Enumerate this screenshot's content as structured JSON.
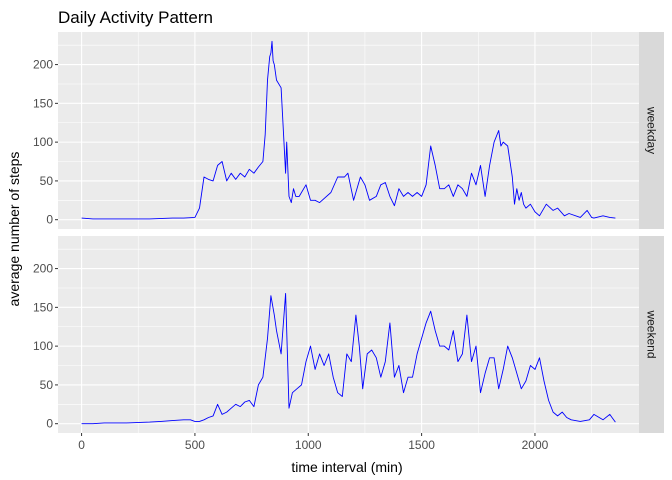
{
  "chart_data": {
    "type": "line",
    "title": "Daily Activity Pattern",
    "xlabel": "time interval (min)",
    "ylabel": "average number of steps",
    "xlim": [
      -104,
      2459
    ],
    "ylim": [
      -12,
      242
    ],
    "xticks": [
      0,
      500,
      1000,
      1500,
      2000
    ],
    "xminor": [
      250,
      750,
      1250,
      1750,
      2250
    ],
    "yticks": [
      0,
      50,
      100,
      150,
      200
    ],
    "yminor": [
      25,
      75,
      125,
      175,
      225
    ],
    "grid": true,
    "legend": "none",
    "line_color": "#0000ff",
    "panel_bg": "#ebebeb",
    "strip_bg": "#d9d9d9",
    "facet_labels": [
      "weekday",
      "weekend"
    ],
    "series": [
      {
        "name": "weekday",
        "x": [
          0,
          50,
          100,
          200,
          300,
          400,
          450,
          500,
          520,
          540,
          560,
          580,
          600,
          620,
          640,
          660,
          680,
          700,
          720,
          740,
          760,
          780,
          800,
          810,
          820,
          830,
          835,
          840,
          845,
          850,
          860,
          880,
          900,
          905,
          915,
          925,
          935,
          945,
          960,
          990,
          1010,
          1030,
          1050,
          1100,
          1130,
          1145,
          1160,
          1175,
          1200,
          1230,
          1250,
          1270,
          1300,
          1320,
          1340,
          1360,
          1380,
          1400,
          1420,
          1440,
          1460,
          1480,
          1500,
          1520,
          1540,
          1560,
          1580,
          1600,
          1620,
          1640,
          1660,
          1680,
          1700,
          1720,
          1740,
          1760,
          1780,
          1800,
          1820,
          1840,
          1850,
          1860,
          1880,
          1900,
          1910,
          1920,
          1930,
          1940,
          1950,
          1960,
          1980,
          2000,
          2020,
          2050,
          2080,
          2100,
          2130,
          2150,
          2200,
          2230,
          2250,
          2260,
          2300,
          2330,
          2355
        ],
        "y": [
          2,
          1,
          1,
          1,
          1,
          2,
          2,
          3,
          15,
          55,
          52,
          50,
          70,
          75,
          50,
          60,
          52,
          60,
          55,
          65,
          60,
          68,
          75,
          110,
          180,
          210,
          215,
          230,
          205,
          200,
          180,
          170,
          60,
          100,
          30,
          22,
          40,
          30,
          30,
          45,
          25,
          25,
          22,
          35,
          55,
          55,
          55,
          60,
          25,
          55,
          45,
          25,
          30,
          45,
          48,
          30,
          18,
          40,
          30,
          35,
          30,
          35,
          30,
          45,
          95,
          70,
          40,
          40,
          45,
          30,
          45,
          40,
          30,
          60,
          45,
          70,
          30,
          70,
          100,
          115,
          95,
          100,
          95,
          55,
          20,
          40,
          25,
          35,
          20,
          15,
          20,
          10,
          5,
          20,
          12,
          15,
          5,
          8,
          3,
          12,
          3,
          2,
          5,
          3,
          2
        ]
      },
      {
        "name": "weekend",
        "x": [
          0,
          50,
          100,
          200,
          300,
          350,
          400,
          450,
          480,
          500,
          520,
          540,
          560,
          580,
          600,
          620,
          640,
          660,
          680,
          700,
          720,
          740,
          760,
          780,
          800,
          820,
          835,
          850,
          860,
          880,
          900,
          915,
          930,
          950,
          970,
          990,
          1010,
          1030,
          1050,
          1070,
          1090,
          1110,
          1130,
          1150,
          1170,
          1190,
          1210,
          1225,
          1240,
          1260,
          1280,
          1300,
          1320,
          1340,
          1360,
          1380,
          1400,
          1420,
          1440,
          1460,
          1480,
          1500,
          1520,
          1540,
          1560,
          1580,
          1600,
          1620,
          1640,
          1660,
          1680,
          1700,
          1720,
          1740,
          1760,
          1780,
          1800,
          1820,
          1840,
          1860,
          1880,
          1900,
          1920,
          1940,
          1960,
          1980,
          2000,
          2020,
          2040,
          2060,
          2080,
          2100,
          2120,
          2140,
          2160,
          2200,
          2240,
          2260,
          2300,
          2330,
          2340,
          2355
        ],
        "y": [
          0,
          0,
          1,
          1,
          2,
          3,
          4,
          5,
          5,
          3,
          3,
          5,
          8,
          10,
          25,
          12,
          15,
          20,
          25,
          22,
          28,
          30,
          22,
          50,
          60,
          110,
          165,
          140,
          120,
          90,
          168,
          20,
          40,
          45,
          50,
          80,
          100,
          70,
          90,
          75,
          90,
          60,
          40,
          35,
          90,
          80,
          140,
          100,
          45,
          90,
          95,
          85,
          60,
          80,
          130,
          60,
          75,
          40,
          60,
          60,
          90,
          110,
          130,
          145,
          120,
          100,
          100,
          95,
          120,
          80,
          90,
          140,
          80,
          100,
          40,
          65,
          85,
          85,
          45,
          70,
          100,
          85,
          65,
          45,
          55,
          75,
          70,
          85,
          55,
          30,
          15,
          10,
          15,
          8,
          5,
          3,
          5,
          12,
          5,
          12,
          8,
          2
        ]
      }
    ]
  }
}
